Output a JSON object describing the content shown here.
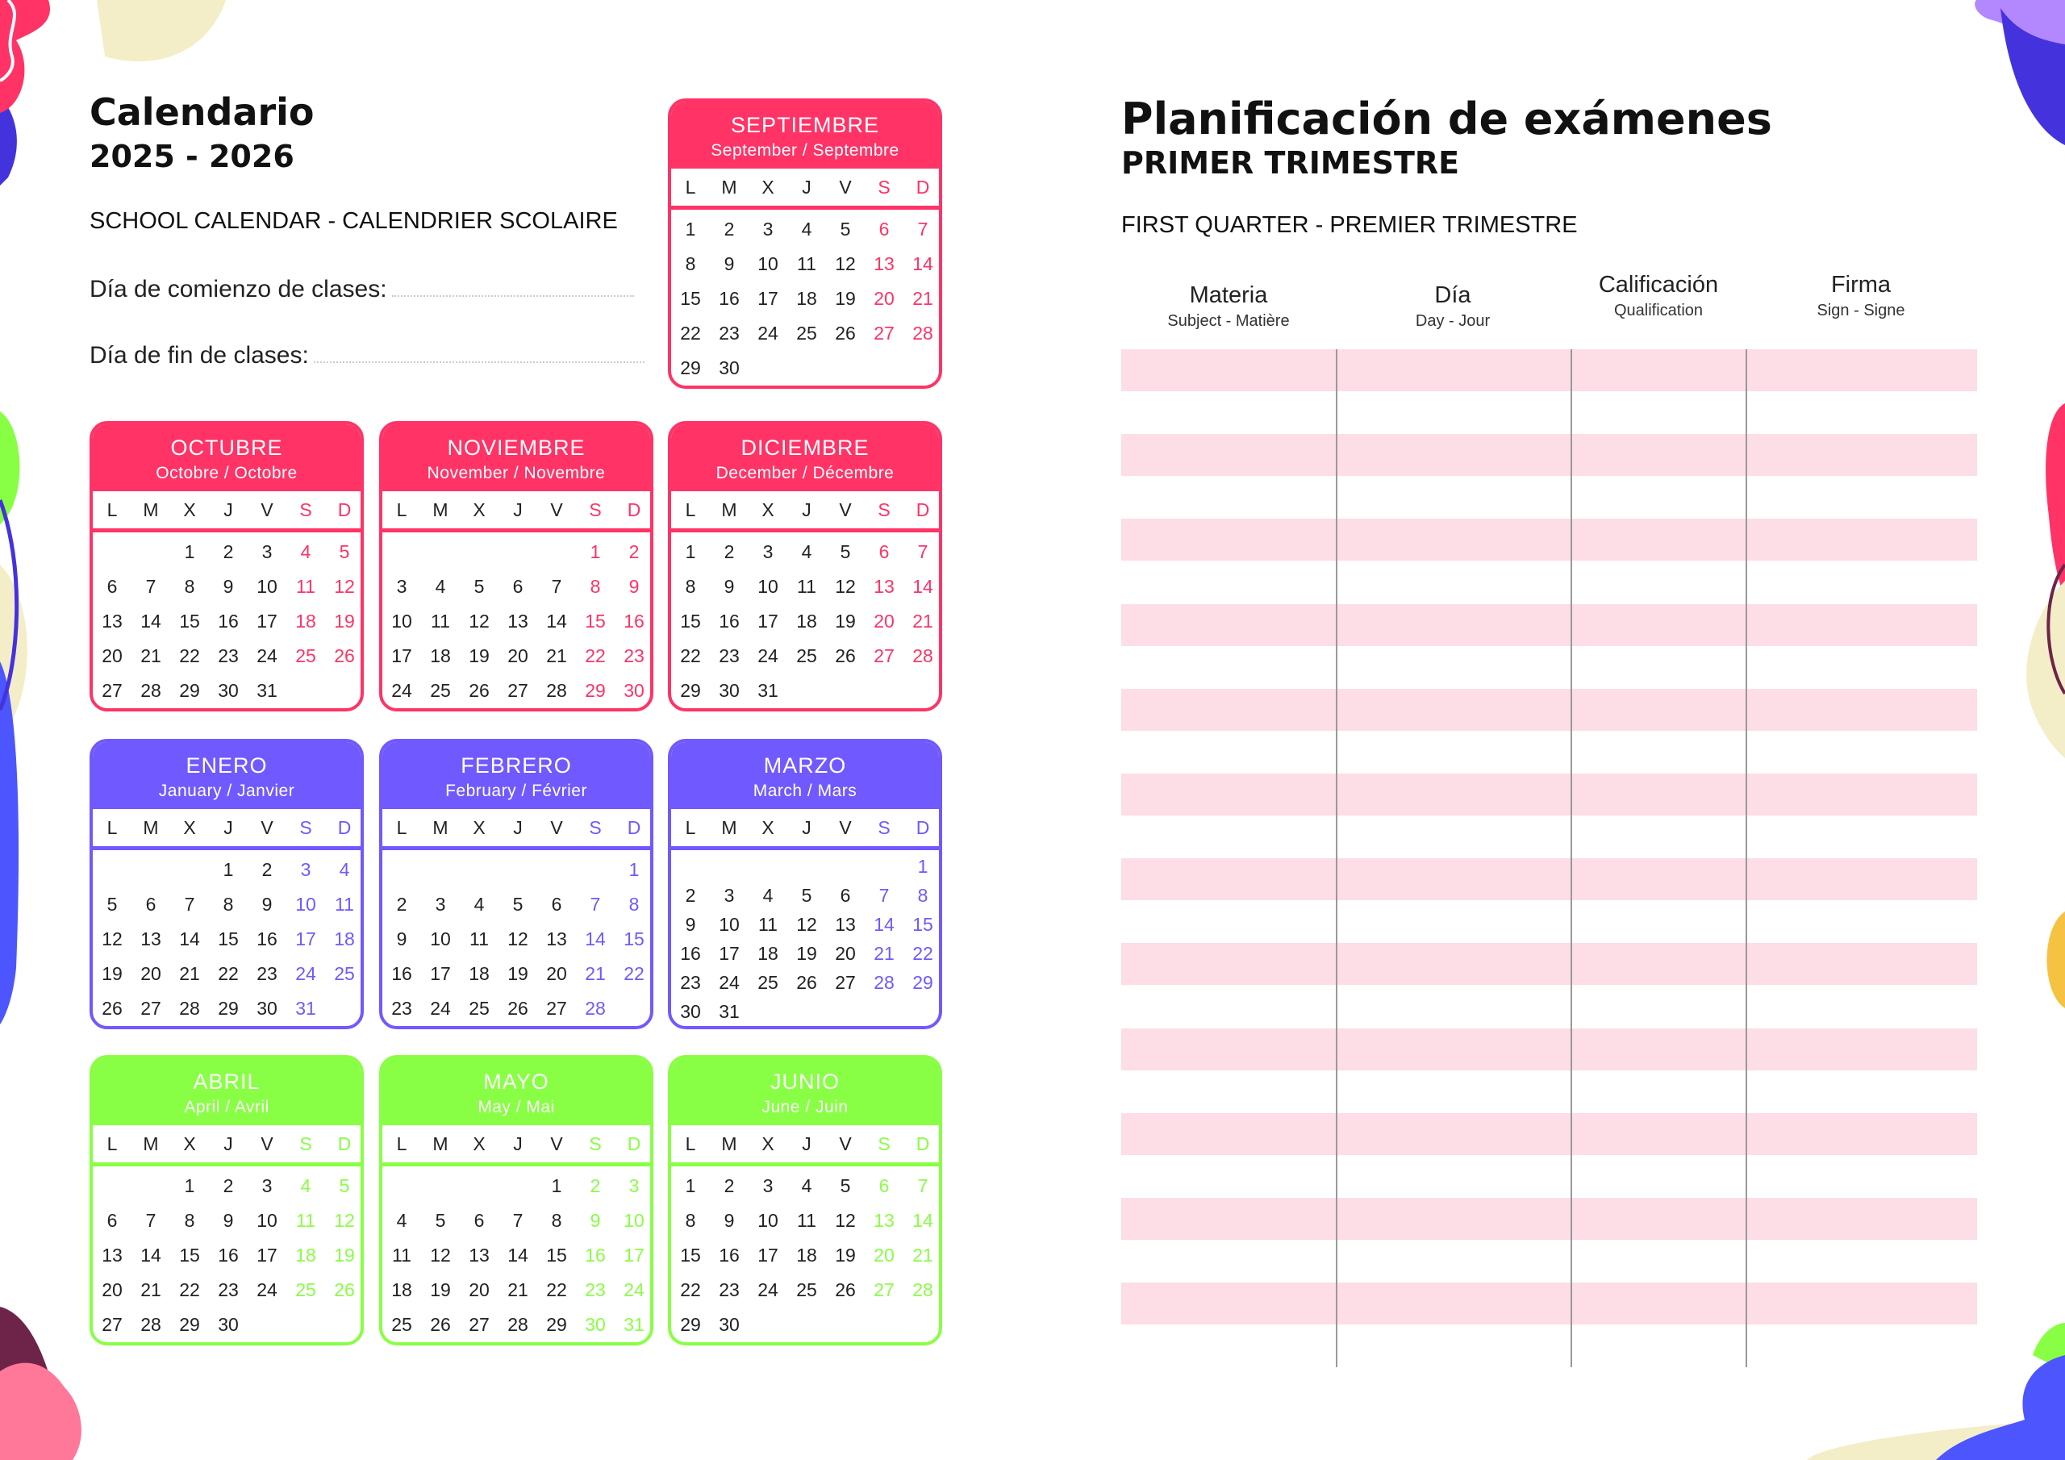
{
  "colors": {
    "pink": "#ff3366",
    "purple": "#7059ff",
    "green": "#88ff44",
    "stripe": "#fddde6"
  },
  "calendar": {
    "title": "Calendario",
    "years": "2025 - 2026",
    "subtitle": "SCHOOL CALENDAR - CALENDRIER SCOLAIRE",
    "start_label": "Día de comienzo de clases:",
    "end_label": "Día de fin de clases:",
    "weekdays": [
      "L",
      "M",
      "X",
      "J",
      "V",
      "S",
      "D"
    ],
    "months": [
      {
        "name": "SEPTIEMBRE",
        "sub": "September / Septembre",
        "theme": "pink",
        "first_weekday": 0,
        "days": 30
      },
      {
        "name": "OCTUBRE",
        "sub": "Octobre / Octobre",
        "theme": "pink",
        "first_weekday": 2,
        "days": 31
      },
      {
        "name": "NOVIEMBRE",
        "sub": "November / Novembre",
        "theme": "pink",
        "first_weekday": 5,
        "days": 30
      },
      {
        "name": "DICIEMBRE",
        "sub": "December / Décembre",
        "theme": "pink",
        "first_weekday": 0,
        "days": 31
      },
      {
        "name": "ENERO",
        "sub": "January / Janvier",
        "theme": "purple",
        "first_weekday": 3,
        "days": 31
      },
      {
        "name": "FEBRERO",
        "sub": "February / Février",
        "theme": "purple",
        "first_weekday": 6,
        "days": 28
      },
      {
        "name": "MARZO",
        "sub": "March / Mars",
        "theme": "purple",
        "first_weekday": 6,
        "days": 31
      },
      {
        "name": "ABRIL",
        "sub": "April / Avril",
        "theme": "green",
        "first_weekday": 2,
        "days": 30
      },
      {
        "name": "MAYO",
        "sub": "May / Mai",
        "theme": "green",
        "first_weekday": 4,
        "days": 31
      },
      {
        "name": "JUNIO",
        "sub": "June / Juin",
        "theme": "green",
        "first_weekday": 0,
        "days": 30
      }
    ]
  },
  "planner": {
    "title": "Planificación de exámenes",
    "subtitle": "PRIMER TRIMESTRE",
    "subtitle2": "FIRST QUARTER - PREMIER TRIMESTRE",
    "columns": [
      {
        "title": "Materia",
        "sub": "Subject - Matière"
      },
      {
        "title": "Día",
        "sub": "Day - Jour"
      },
      {
        "title": "Calificación",
        "sub": "Qualification"
      },
      {
        "title": "Firma",
        "sub": "Sign - Signe"
      }
    ],
    "rows": [
      {},
      {},
      {},
      {},
      {},
      {},
      {},
      {},
      {},
      {},
      {},
      {},
      {},
      {},
      {},
      {},
      {},
      {},
      {},
      {},
      {},
      {},
      {},
      {}
    ]
  }
}
